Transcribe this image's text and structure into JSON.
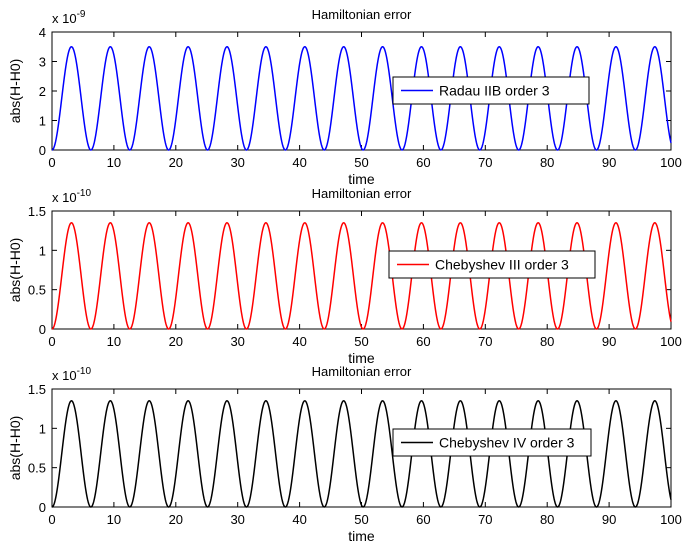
{
  "chart_data": [
    {
      "type": "line",
      "title": "Hamiltonian error",
      "xlabel": "time",
      "ylabel": "abs(H-H0)",
      "exponent_label": "x 10",
      "exponent_power": "-9",
      "xlim": [
        0,
        100
      ],
      "ylim": [
        0,
        4
      ],
      "xticks": [
        "0",
        "10",
        "20",
        "30",
        "40",
        "50",
        "60",
        "70",
        "80",
        "90",
        "100"
      ],
      "yticks": [
        "0",
        "1",
        "2",
        "3",
        "4"
      ],
      "legend_position": "right",
      "series": [
        {
          "name": "Radau IIB order 3",
          "color": "#0000ff",
          "function": "sin_squared",
          "amplitude": 3.5,
          "period": 6.283,
          "x_range": [
            0,
            100
          ]
        }
      ]
    },
    {
      "type": "line",
      "title": "Hamiltonian error",
      "xlabel": "time",
      "ylabel": "abs(H-H0)",
      "exponent_label": "x 10",
      "exponent_power": "-10",
      "xlim": [
        0,
        100
      ],
      "ylim": [
        0,
        1.5
      ],
      "xticks": [
        "0",
        "10",
        "20",
        "30",
        "40",
        "50",
        "60",
        "70",
        "80",
        "90",
        "100"
      ],
      "yticks": [
        "0",
        "0.5",
        "1",
        "1.5"
      ],
      "legend_position": "right",
      "series": [
        {
          "name": "Chebyshev III order 3",
          "color": "#ff0000",
          "function": "sin_squared",
          "amplitude": 1.35,
          "period": 6.283,
          "x_range": [
            0,
            100
          ]
        }
      ]
    },
    {
      "type": "line",
      "title": "Hamiltonian error",
      "xlabel": "time",
      "ylabel": "abs(H-H0)",
      "exponent_label": "x 10",
      "exponent_power": "-10",
      "xlim": [
        0,
        100
      ],
      "ylim": [
        0,
        1.5
      ],
      "xticks": [
        "0",
        "10",
        "20",
        "30",
        "40",
        "50",
        "60",
        "70",
        "80",
        "90",
        "100"
      ],
      "yticks": [
        "0",
        "0.5",
        "1",
        "1.5"
      ],
      "legend_position": "right",
      "series": [
        {
          "name": "Chebyshev IV order 3",
          "color": "#000000",
          "function": "sin_squared",
          "amplitude": 1.35,
          "period": 6.283,
          "x_range": [
            0,
            100
          ]
        }
      ]
    }
  ]
}
